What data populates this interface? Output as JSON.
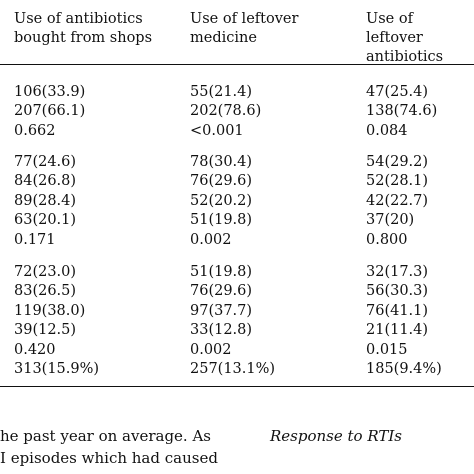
{
  "table": {
    "headers": [
      [
        "Use of antibiotics",
        "bought from shops"
      ],
      [
        "Use of leftover",
        "medicine"
      ],
      [
        "Use of leftover",
        "antibiotics"
      ]
    ],
    "groups": [
      {
        "rows": [
          [
            "106(33.9)",
            "55(21.4)",
            "47(25.4)"
          ],
          [
            "207(66.1)",
            "202(78.6)",
            "138(74.6)"
          ],
          [
            "0.662",
            "<0.001",
            "0.084"
          ]
        ]
      },
      {
        "rows": [
          [
            "77(24.6)",
            "78(30.4)",
            "54(29.2)"
          ],
          [
            "84(26.8)",
            "76(29.6)",
            "52(28.1)"
          ],
          [
            "89(28.4)",
            "52(20.2)",
            "42(22.7)"
          ],
          [
            "63(20.1)",
            "51(19.8)",
            "37(20)"
          ],
          [
            "0.171",
            "0.002",
            "0.800"
          ]
        ]
      },
      {
        "rows": [
          [
            "72(23.0)",
            "51(19.8)",
            "32(17.3)"
          ],
          [
            "83(26.5)",
            "76(29.6)",
            "56(30.3)"
          ],
          [
            "119(38.0)",
            "97(37.7)",
            "76(41.1)"
          ],
          [
            "39(12.5)",
            "33(12.8)",
            "21(11.4)"
          ],
          [
            "0.420",
            "0.002",
            "0.015"
          ],
          [
            "313(15.9%)",
            "257(13.1%)",
            "185(9.4%)"
          ]
        ]
      }
    ]
  },
  "body_text": {
    "line1_left": "he past year on average. As",
    "line2_left": "I episodes which had caused",
    "section_heading": "Response to RTIs"
  }
}
